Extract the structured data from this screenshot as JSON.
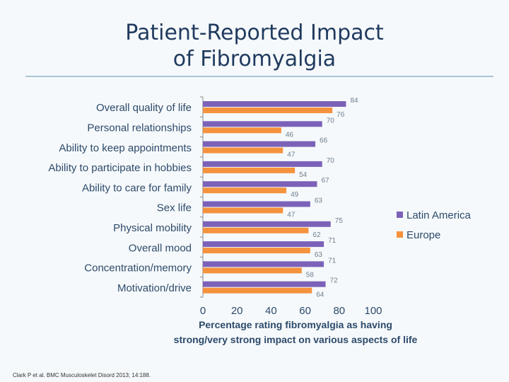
{
  "title_lines": [
    "Patient-Reported Impact",
    "of Fibromyalgia"
  ],
  "citation": "Clark P et al. BMC Musculoskelet Disord 2013; 14:188.",
  "chart_data": {
    "type": "bar",
    "orientation": "horizontal",
    "categories": [
      "Overall quality of life",
      "Personal relationships",
      "Ability to keep appointments",
      "Ability to participate in hobbies",
      "Ability to care for family",
      "Sex life",
      "Physical mobility",
      "Overall mood",
      "Concentration/memory",
      "Motivation/drive"
    ],
    "series": [
      {
        "name": "Latin America",
        "color": "#7b62b8",
        "values": [
          84,
          70,
          66,
          70,
          67,
          63,
          75,
          71,
          71,
          72
        ]
      },
      {
        "name": "Europe",
        "color": "#f5923e",
        "values": [
          76,
          46,
          47,
          54,
          49,
          47,
          62,
          63,
          58,
          64
        ]
      }
    ],
    "xlim": [
      0,
      100
    ],
    "xticks": [
      0,
      20,
      40,
      60,
      80,
      100
    ],
    "xlabel": [
      "Percentage rating fibromyalgia as having",
      "strong/very strong impact on various aspects of life"
    ],
    "ylabel": "",
    "legend_position": "right",
    "grid": false
  }
}
